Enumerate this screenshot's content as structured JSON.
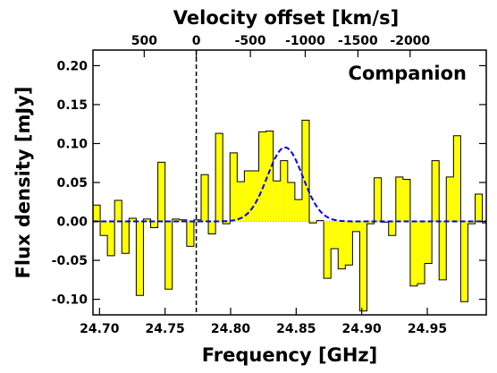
{
  "chart_data": {
    "type": "bar",
    "title": "",
    "annotation": "Companion",
    "xlabel": "Frequency [GHz]",
    "ylabel": "Flux density [mJy]",
    "x2label": "Velocity offset [km/s]",
    "xlim": [
      24.695,
      24.995
    ],
    "ylim": [
      -0.12,
      0.22
    ],
    "x_ticks": [
      24.7,
      24.75,
      24.8,
      24.85,
      24.9,
      24.95
    ],
    "x_tick_labels": [
      "24.70",
      "24.75",
      "24.80",
      "24.85",
      "24.90",
      "24.95"
    ],
    "y_ticks": [
      -0.1,
      -0.05,
      0.0,
      0.05,
      0.1,
      0.15,
      0.2
    ],
    "y_tick_labels": [
      "-0.10",
      "-0.05",
      "0.00",
      "0.05",
      "0.10",
      "0.15",
      "0.20"
    ],
    "velocity_ticks": [
      {
        "label": "500",
        "freq": 24.7341
      },
      {
        "label": "0",
        "freq": 24.7738
      },
      {
        "label": "-500",
        "freq": 24.8151
      },
      {
        "label": "-1000",
        "freq": 24.8569
      },
      {
        "label": "-1500",
        "freq": 24.8971
      },
      {
        "label": "-2000",
        "freq": 24.9369
      }
    ],
    "systemic_frequency": 24.7738,
    "zero_line": 0.0,
    "bin_edges": [
      24.695,
      24.7005,
      24.706,
      24.7115,
      24.717,
      24.7225,
      24.728,
      24.7335,
      24.739,
      24.7445,
      24.75,
      24.7555,
      24.761,
      24.7665,
      24.772,
      24.7775,
      24.783,
      24.7885,
      24.794,
      24.7995,
      24.805,
      24.8105,
      24.816,
      24.8215,
      24.827,
      24.8325,
      24.838,
      24.8435,
      24.849,
      24.8545,
      24.86,
      24.8655,
      24.871,
      24.8765,
      24.882,
      24.8875,
      24.893,
      24.8985,
      24.904,
      24.9095,
      24.915,
      24.9205,
      24.926,
      24.9315,
      24.937,
      24.9425,
      24.948,
      24.9535,
      24.959,
      24.9645,
      24.97,
      24.9755,
      24.981,
      24.9865,
      24.992,
      24.995
    ],
    "series": [
      {
        "name": "",
        "style": "step-filled",
        "values": [
          0.021,
          -0.018,
          -0.044,
          0.027,
          -0.041,
          0.004,
          -0.095,
          0.003,
          -0.008,
          0.076,
          -0.087,
          0.003,
          0.002,
          -0.032,
          0.002,
          0.06,
          -0.016,
          0.113,
          -0.003,
          0.088,
          0.051,
          0.065,
          0.065,
          0.115,
          0.116,
          0.052,
          0.078,
          0.05,
          0.028,
          0.13,
          -0.002,
          0.001,
          -0.073,
          -0.035,
          -0.061,
          -0.056,
          -0.013,
          -0.115,
          -0.003,
          0.056,
          -0.001,
          -0.018,
          0.057,
          0.054,
          -0.083,
          -0.08,
          -0.054,
          0.078,
          -0.075,
          0.057,
          0.11,
          -0.103,
          -0.003,
          0.035,
          -0.002
        ],
        "color": "#ffff00"
      },
      {
        "name": "",
        "style": "gaussian-fit",
        "amplitude": 0.095,
        "center": 24.8415,
        "sigma": 0.0135,
        "color": "#0000ee"
      }
    ],
    "grid": false,
    "legend": "none"
  }
}
